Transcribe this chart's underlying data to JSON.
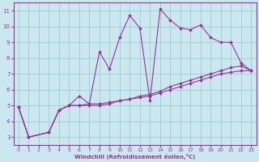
{
  "bg_color": "#cbe8f0",
  "grid_color": "#a0cccc",
  "line_color": "#993399",
  "marker_color": "#993399",
  "xlabel": "Windchill (Refroidissement éolien,°C)",
  "xlim": [
    -0.5,
    23.5
  ],
  "ylim": [
    2.5,
    11.5
  ],
  "yticks": [
    3,
    4,
    5,
    6,
    7,
    8,
    9,
    10,
    11
  ],
  "xticks": [
    0,
    1,
    2,
    3,
    4,
    5,
    6,
    7,
    8,
    9,
    10,
    11,
    12,
    13,
    14,
    15,
    16,
    17,
    18,
    19,
    20,
    21,
    22,
    23
  ],
  "series": [
    {
      "x": [
        0,
        1,
        3,
        4,
        5,
        6,
        7,
        8,
        9,
        10,
        11,
        12,
        13,
        14,
        15,
        16,
        17,
        18,
        19,
        20,
        21,
        22,
        23
      ],
      "y": [
        4.9,
        3.0,
        3.3,
        4.7,
        5.0,
        5.6,
        5.1,
        8.4,
        7.3,
        9.3,
        10.7,
        9.9,
        5.3,
        11.1,
        10.4,
        9.9,
        9.8,
        10.1,
        9.3,
        9.0,
        9.0,
        7.7,
        7.2
      ]
    },
    {
      "x": [
        0,
        1,
        3,
        4,
        5,
        6,
        7,
        8,
        9,
        10,
        11,
        12,
        13,
        14,
        15,
        16,
        17,
        18,
        19,
        20,
        21,
        22,
        23
      ],
      "y": [
        4.9,
        3.0,
        3.3,
        4.7,
        5.0,
        5.0,
        5.0,
        5.0,
        5.1,
        5.3,
        5.4,
        5.5,
        5.6,
        5.8,
        6.0,
        6.2,
        6.4,
        6.6,
        6.8,
        7.0,
        7.1,
        7.2,
        7.2
      ]
    },
    {
      "x": [
        0,
        1,
        3,
        4,
        5,
        6,
        7,
        8,
        9,
        10,
        11,
        12,
        13,
        14,
        15,
        16,
        17,
        18,
        19,
        20,
        21,
        22,
        23
      ],
      "y": [
        4.9,
        3.0,
        3.3,
        4.7,
        5.0,
        5.0,
        5.1,
        5.1,
        5.2,
        5.3,
        5.4,
        5.6,
        5.7,
        5.9,
        6.2,
        6.4,
        6.6,
        6.8,
        7.0,
        7.2,
        7.4,
        7.5,
        7.2
      ]
    }
  ],
  "figsize": [
    3.2,
    2.0
  ],
  "dpi": 100
}
